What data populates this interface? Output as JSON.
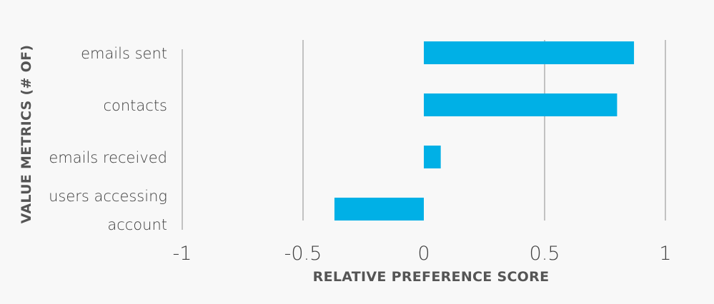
{
  "chart_data": {
    "type": "bar",
    "orientation": "horizontal",
    "categories": [
      "emails sent",
      "contacts",
      "emails received",
      "users accessing account"
    ],
    "category_lines": [
      [
        "emails sent"
      ],
      [
        "contacts"
      ],
      [
        "emails received"
      ],
      [
        "users accessing",
        "account"
      ]
    ],
    "values": [
      0.87,
      0.8,
      0.07,
      -0.37
    ],
    "xlabel": "RELATIVE PREFERENCE SCORE",
    "ylabel": "VALUE METRICS (# OF)",
    "xlim": [
      -1,
      1
    ],
    "xticks": [
      -1,
      -0.5,
      0,
      0.5,
      1
    ],
    "xtick_labels": [
      "-1",
      "-0.5",
      "0",
      "0.5",
      "1"
    ],
    "grid": true,
    "legend": "none",
    "colors": {
      "bar": "#00b0e6",
      "grid": "#8c8c8c",
      "text": "#404040",
      "axis_title": "#555555",
      "background": "#f8f8f8"
    }
  }
}
